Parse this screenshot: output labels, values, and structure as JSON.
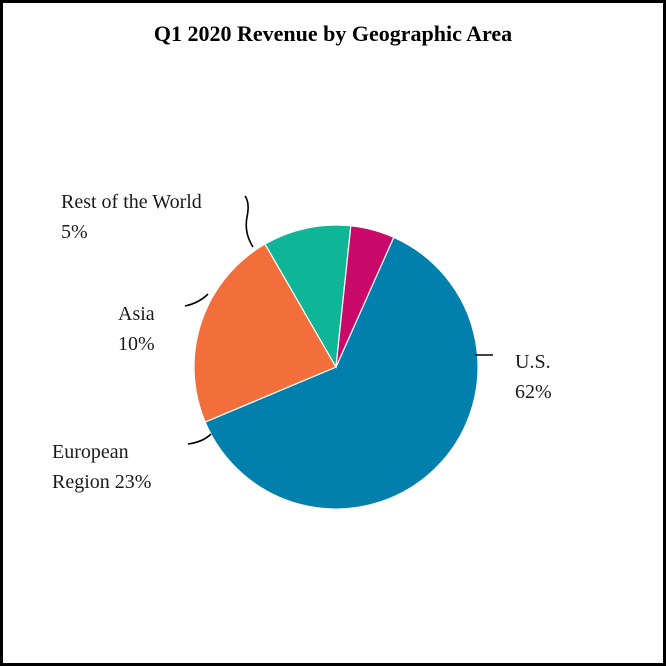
{
  "chart_data": {
    "type": "pie",
    "title": "Q1 2020 Revenue by Geographic Area",
    "slices": [
      {
        "name": "U.S.",
        "value": 62,
        "color": "#0180ad",
        "label_line1": "U.S.",
        "label_line2": "62%"
      },
      {
        "name": "European Region",
        "value": 23,
        "color": "#f26f3c",
        "label_line1": "European",
        "label_line2": "Region 23%"
      },
      {
        "name": "Asia",
        "value": 10,
        "color": "#0fb597",
        "label_line1": "Asia",
        "label_line2": "10%"
      },
      {
        "name": "Rest of the World",
        "value": 5,
        "color": "#ca0a6a",
        "label_line1": "Rest of the World",
        "label_line2": "5%"
      }
    ]
  }
}
